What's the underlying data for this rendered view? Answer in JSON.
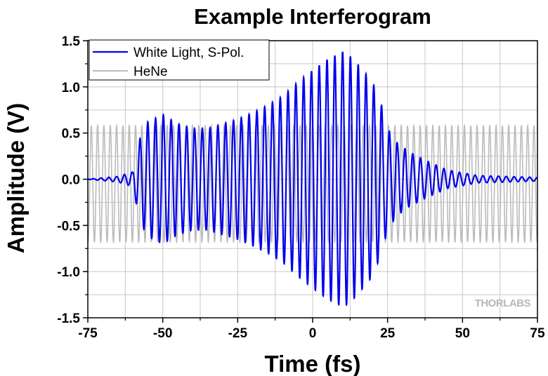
{
  "chart_data": {
    "type": "line",
    "title": "Example Interferogram",
    "xlabel": "Time (fs)",
    "ylabel": "Amplitude (V)",
    "xlim": [
      -75,
      75
    ],
    "ylim": [
      -1.5,
      1.5
    ],
    "xticks": [
      -75,
      -50,
      -25,
      0,
      25,
      50,
      75
    ],
    "xtick_labels": [
      "-75",
      "-50",
      "-25",
      "0",
      "25",
      "50",
      "75"
    ],
    "yticks": [
      -1.5,
      -1.0,
      -0.5,
      0.0,
      0.5,
      1.0,
      1.5
    ],
    "ytick_labels": [
      "-1.5",
      "-1.0",
      "-0.5",
      "0.0",
      "0.5",
      "1.0",
      "1.5"
    ],
    "grid": true,
    "legend_position": "top-left",
    "series": [
      {
        "name": "White Light, S-Pol.",
        "color": "#0000ee",
        "carrier_period_fs": 2.6,
        "points": [
          [
            -75,
            0.0
          ],
          [
            -65,
            0.03
          ],
          [
            -60,
            0.08
          ],
          [
            -58,
            0.4
          ],
          [
            -57,
            0.5
          ],
          [
            -55,
            0.62
          ],
          [
            -50,
            0.7
          ],
          [
            -45,
            0.6
          ],
          [
            -40,
            0.55
          ],
          [
            -35,
            0.55
          ],
          [
            -30,
            0.6
          ],
          [
            -25,
            0.65
          ],
          [
            -20,
            0.72
          ],
          [
            -15,
            0.8
          ],
          [
            -10,
            0.9
          ],
          [
            -5,
            1.05
          ],
          [
            0,
            1.18
          ],
          [
            5,
            1.3
          ],
          [
            10,
            1.38
          ],
          [
            12,
            1.35
          ],
          [
            15,
            1.25
          ],
          [
            20,
            1.05
          ],
          [
            23,
            0.8
          ],
          [
            25,
            0.55
          ],
          [
            28,
            0.4
          ],
          [
            32,
            0.3
          ],
          [
            38,
            0.2
          ],
          [
            45,
            0.1
          ],
          [
            55,
            0.04
          ],
          [
            65,
            0.03
          ],
          [
            75,
            0.02
          ]
        ]
      },
      {
        "name": "HeNe",
        "color": "#bbbbbb",
        "period_fs": 2.11,
        "amplitude": 0.63,
        "offset": -0.05
      }
    ]
  },
  "watermark": "THORLABS"
}
